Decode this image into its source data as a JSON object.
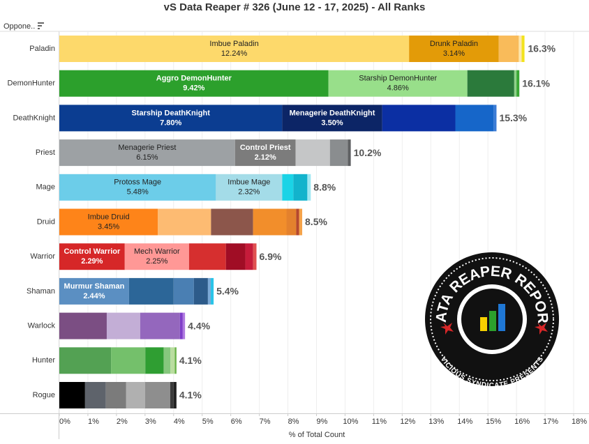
{
  "chart_data": {
    "type": "stacked-bar-horizontal",
    "title": "vS Data Reaper # 326 (June 12 - 17, 2025) - All Ranks",
    "row_header": "Oppone..",
    "xlabel": "% of Total Count",
    "xlim": [
      0,
      18
    ],
    "xticks": [
      {
        "value": 0,
        "label": "0%"
      },
      {
        "value": 1,
        "label": "1%"
      },
      {
        "value": 2,
        "label": "2%"
      },
      {
        "value": 3,
        "label": "3%"
      },
      {
        "value": 4,
        "label": "4%"
      },
      {
        "value": 5,
        "label": "5%"
      },
      {
        "value": 6,
        "label": "6%"
      },
      {
        "value": 7,
        "label": "7%"
      },
      {
        "value": 8,
        "label": "8%"
      },
      {
        "value": 9,
        "label": "9%"
      },
      {
        "value": 10,
        "label": "10%"
      },
      {
        "value": 11,
        "label": "11%"
      },
      {
        "value": 12,
        "label": "12%"
      },
      {
        "value": 13,
        "label": "13%"
      },
      {
        "value": 14,
        "label": "14%"
      },
      {
        "value": 15,
        "label": "15%"
      },
      {
        "value": 16,
        "label": "16%"
      },
      {
        "value": 17,
        "label": "17%"
      },
      {
        "value": 18,
        "label": "18%"
      }
    ],
    "grid": true,
    "bars": [
      {
        "category": "Paladin",
        "total": 16.3,
        "total_label": "16.3%",
        "segments": [
          {
            "name": "Imbue Paladin",
            "value": 12.24,
            "value_label": "12.24%",
            "color": "#fdd96b",
            "label_color": "#222"
          },
          {
            "name": "Drunk Paladin",
            "value": 3.14,
            "value_label": "3.14%",
            "color": "#e39b08",
            "label_color": "#222"
          },
          {
            "value": 0.7,
            "color": "#f9bb5a"
          },
          {
            "value": 0.1,
            "color": "#fde7ad"
          },
          {
            "value": 0.1,
            "color": "#f2e31d"
          }
        ]
      },
      {
        "category": "DemonHunter",
        "total": 16.1,
        "total_label": "16.1%",
        "segments": [
          {
            "name": "Aggro DemonHunter",
            "value": 9.42,
            "value_label": "9.42%",
            "color": "#2ca02c",
            "label_color": "#fff"
          },
          {
            "name": "Starship DemonHunter",
            "value": 4.86,
            "value_label": "4.86%",
            "color": "#98df8a",
            "label_color": "#222"
          },
          {
            "value": 1.64,
            "color": "#2b7a3b"
          },
          {
            "value": 0.08,
            "color": "#8fd18a"
          },
          {
            "value": 0.1,
            "color": "#3aa835"
          }
        ]
      },
      {
        "category": "DeathKnight",
        "total": 15.3,
        "total_label": "15.3%",
        "segments": [
          {
            "name": "Starship DeathKnight",
            "value": 7.8,
            "value_label": "7.80%",
            "color": "#0b3d91",
            "label_color": "#fff"
          },
          {
            "name": "Menagerie DeathKnight",
            "value": 3.5,
            "value_label": "3.50%",
            "color": "#0c2566",
            "label_color": "#fff"
          },
          {
            "value": 2.56,
            "color": "#0b2fa3"
          },
          {
            "value": 1.34,
            "color": "#1666c9"
          },
          {
            "value": 0.1,
            "color": "#3a7bd5"
          }
        ]
      },
      {
        "category": "Priest",
        "total": 10.2,
        "total_label": "10.2%",
        "segments": [
          {
            "name": "Menagerie Priest",
            "value": 6.15,
            "value_label": "6.15%",
            "color": "#9da1a4",
            "label_color": "#222"
          },
          {
            "name": "Control Priest",
            "value": 2.12,
            "value_label": "2.12%",
            "color": "#7c7c7c",
            "label_color": "#fff"
          },
          {
            "value": 1.2,
            "color": "#c5c6c7"
          },
          {
            "value": 0.63,
            "color": "#8a8d8f"
          },
          {
            "value": 0.1,
            "color": "#5e6062"
          }
        ]
      },
      {
        "category": "Mage",
        "total": 8.8,
        "total_label": "8.8%",
        "segments": [
          {
            "name": "Protoss Mage",
            "value": 5.48,
            "value_label": "5.48%",
            "color": "#6ccde9",
            "label_color": "#222"
          },
          {
            "name": "Imbue Mage",
            "value": 2.32,
            "value_label": "2.32%",
            "color": "#a4dce8",
            "label_color": "#222"
          },
          {
            "value": 0.39,
            "color": "#1ad3e6"
          },
          {
            "value": 0.49,
            "color": "#12b3cc"
          },
          {
            "value": 0.12,
            "color": "#9ee7f2"
          }
        ]
      },
      {
        "category": "Druid",
        "total": 8.5,
        "total_label": "8.5%",
        "segments": [
          {
            "name": "Imbue Druid",
            "value": 3.45,
            "value_label": "3.45%",
            "color": "#fe8419",
            "label_color": "#222"
          },
          {
            "value": 1.86,
            "color": "#fdbb72"
          },
          {
            "value": 1.47,
            "color": "#8c564b"
          },
          {
            "value": 1.17,
            "color": "#f28e2b"
          },
          {
            "value": 0.34,
            "color": "#e4812d"
          },
          {
            "value": 0.1,
            "color": "#b5482e"
          },
          {
            "value": 0.11,
            "color": "#f5a34a"
          }
        ]
      },
      {
        "category": "Warrior",
        "total": 6.9,
        "total_label": "6.9%",
        "segments": [
          {
            "name": "Control Warrior",
            "value": 2.29,
            "value_label": "2.29%",
            "color": "#d62728",
            "label_color": "#fff"
          },
          {
            "name": "Mech Warrior",
            "value": 2.25,
            "value_label": "2.25%",
            "color": "#ff9896",
            "label_color": "#222"
          },
          {
            "value": 1.29,
            "color": "#d62f2f"
          },
          {
            "value": 0.68,
            "color": "#a00d25"
          },
          {
            "value": 0.27,
            "color": "#c61b3a"
          },
          {
            "value": 0.12,
            "color": "#e05050"
          }
        ]
      },
      {
        "category": "Shaman",
        "total": 5.4,
        "total_label": "5.4%",
        "segments": [
          {
            "name": "Murmur Shaman",
            "value": 2.44,
            "value_label": "2.44%",
            "color": "#5b8fc2",
            "label_color": "#fff"
          },
          {
            "value": 1.56,
            "color": "#2c6698"
          },
          {
            "value": 0.71,
            "color": "#4a7fb3"
          },
          {
            "value": 0.49,
            "color": "#2d5b8a"
          },
          {
            "value": 0.1,
            "color": "#7aa9d6"
          },
          {
            "value": 0.1,
            "color": "#29c4e8"
          }
        ]
      },
      {
        "category": "Warlock",
        "total": 4.4,
        "total_label": "4.4%",
        "segments": [
          {
            "value": 1.66,
            "color": "#7b4e83"
          },
          {
            "value": 1.17,
            "color": "#c3aed6"
          },
          {
            "value": 1.39,
            "color": "#9467bd"
          },
          {
            "value": 0.1,
            "color": "#7f3ec9"
          },
          {
            "value": 0.08,
            "color": "#b07ae0"
          }
        ]
      },
      {
        "category": "Hunter",
        "total": 4.1,
        "total_label": "4.1%",
        "segments": [
          {
            "value": 1.81,
            "color": "#53a153"
          },
          {
            "value": 1.2,
            "color": "#74c06b"
          },
          {
            "value": 0.64,
            "color": "#2f9e32"
          },
          {
            "value": 0.24,
            "color": "#86c77d"
          },
          {
            "value": 0.15,
            "color": "#b9dd9f"
          },
          {
            "value": 0.06,
            "color": "#6ab34a"
          }
        ]
      },
      {
        "category": "Rogue",
        "total": 4.1,
        "total_label": "4.1%",
        "segments": [
          {
            "value": 0.9,
            "color": "#000000"
          },
          {
            "value": 0.73,
            "color": "#5e636b"
          },
          {
            "value": 0.71,
            "color": "#7b7b7b"
          },
          {
            "value": 0.66,
            "color": "#b0b0b0"
          },
          {
            "value": 0.88,
            "color": "#8e8e8e"
          },
          {
            "value": 0.12,
            "color": "#3a3a3a"
          },
          {
            "value": 0.1,
            "color": "#222222"
          }
        ]
      }
    ],
    "logo": {
      "title": "DATA REAPER REPORT",
      "subtitle": "VICIOUS SYNDICATE PRESENTS"
    }
  }
}
